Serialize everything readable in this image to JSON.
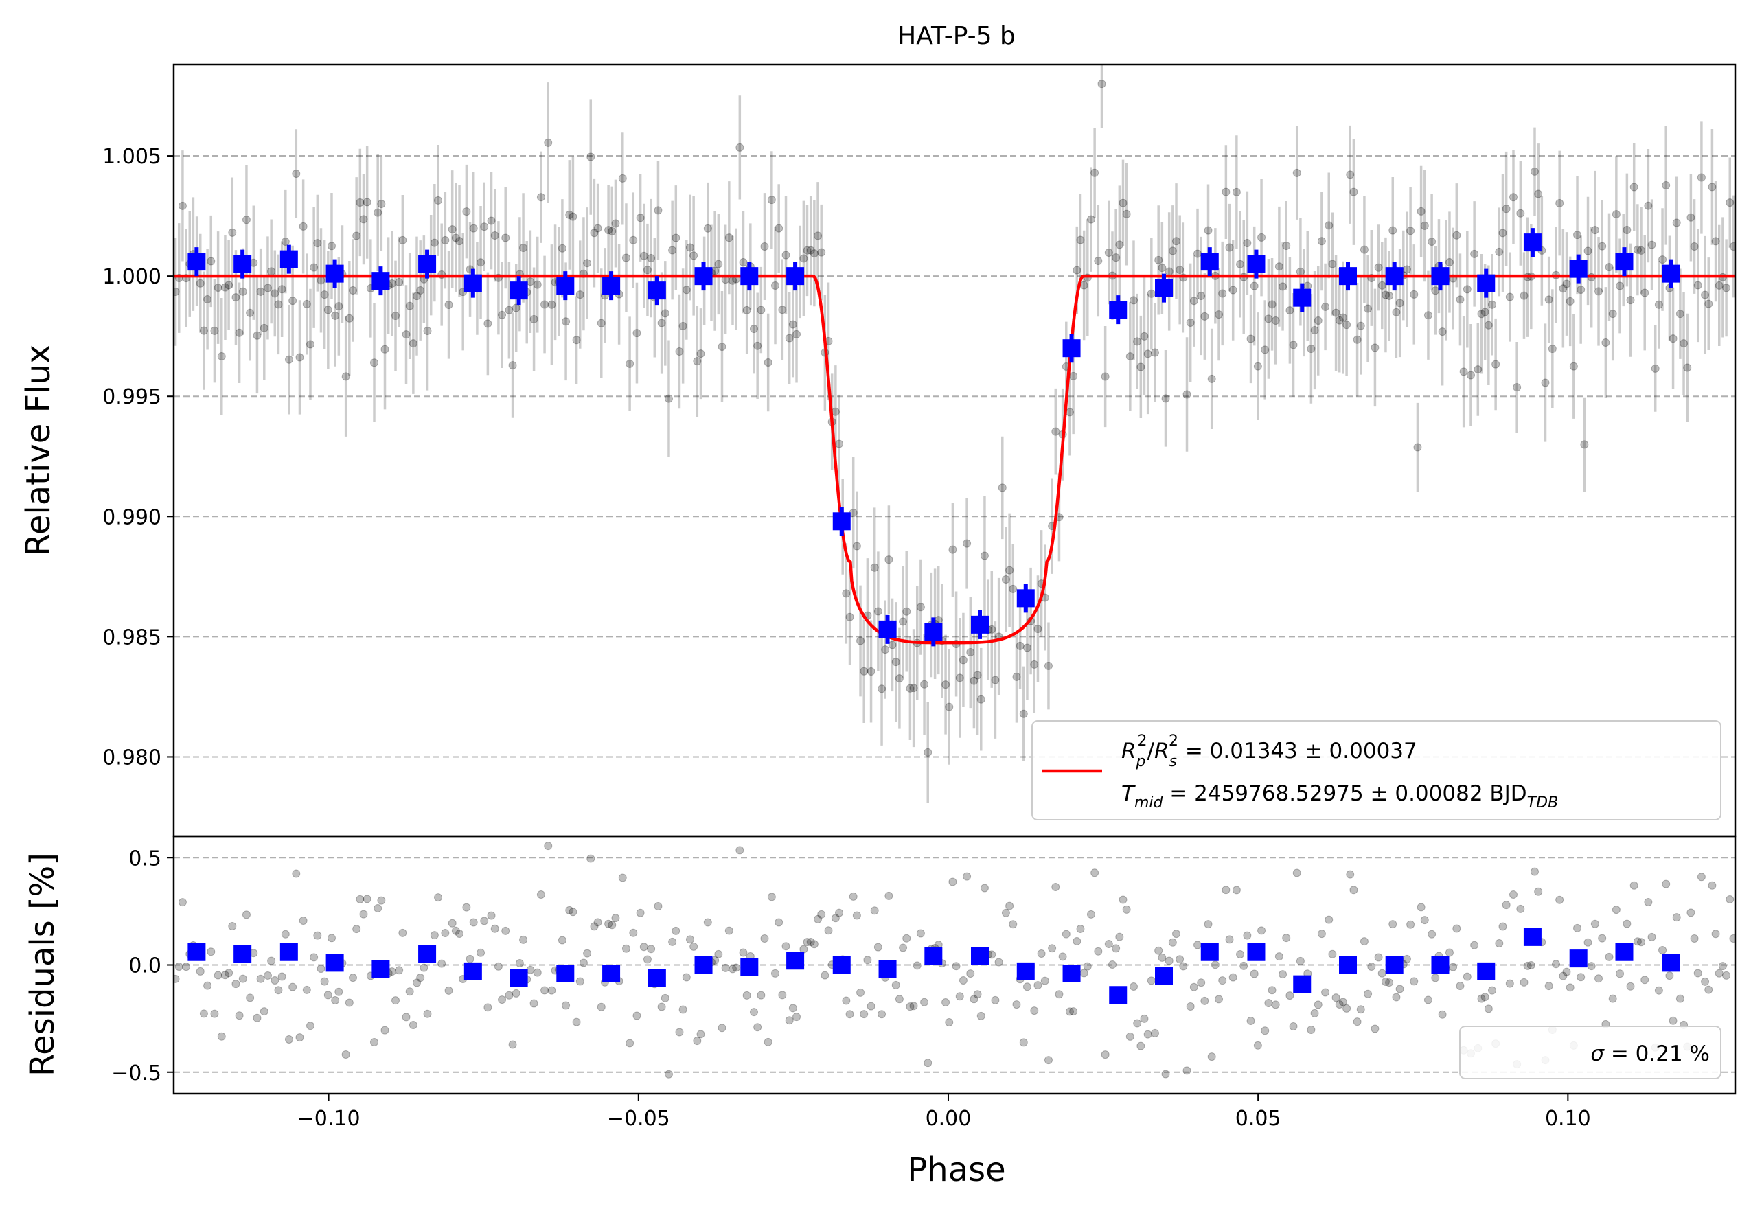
{
  "chart_data": [
    {
      "type": "scatter",
      "panel": "light-curve",
      "title": "HAT-P-5 b",
      "xlabel": "",
      "ylabel": "Relative Flux",
      "xlim": [
        -0.125,
        0.127
      ],
      "ylim": [
        0.9767,
        1.0088
      ],
      "grid": "horizontal dashed",
      "y_ticks": [
        0.98,
        0.985,
        0.99,
        0.995,
        1.0,
        1.005
      ],
      "y_tick_labels": [
        "0.980",
        "0.985",
        "0.990",
        "0.995",
        "1.000",
        "1.005"
      ],
      "transit_model": {
        "color": "#ff0000",
        "baseline": 1.0,
        "depth_min": 0.98475,
        "t1": -0.0218,
        "t2": -0.0158,
        "t3": 0.0158,
        "t4": 0.0218
      },
      "legend": {
        "placement": "lower-right",
        "entries": [
          {
            "label": "R_p^2/R_s^2 = 0.01343 ± 0.00037",
            "color": "#ff0000"
          },
          {
            "label": "T_mid = 2459768.52975 ± 0.00082 BJD_TDB"
          }
        ]
      },
      "legend_text": {
        "line1_r": "R",
        "line1_sub1": "p",
        "line1_sup1": "2",
        "line1_slash": "/",
        "line1_r2": "R",
        "line1_sub2": "s",
        "line1_sup2": "2",
        "line1_value": " = 0.01343 ± 0.00037",
        "line2_t": "T",
        "line2_sub": "mid",
        "line2_value": " = 2459768.52975 ± 0.00082 BJD",
        "line2_unit_sub": "TDB"
      },
      "binned": {
        "color": "#0000ff",
        "x": [
          -0.1213,
          -0.1139,
          -0.1064,
          -0.099,
          -0.0916,
          -0.0841,
          -0.0767,
          -0.0693,
          -0.0618,
          -0.0544,
          -0.047,
          -0.0395,
          -0.0321,
          -0.0247,
          -0.0172,
          -0.0098,
          -0.0024,
          0.0051,
          0.0125,
          0.0199,
          0.0274,
          0.0348,
          0.0422,
          0.0497,
          0.0571,
          0.0645,
          0.072,
          0.0794,
          0.0868,
          0.0943,
          0.1017,
          0.1091,
          0.1166
        ],
        "y": [
          1.0006,
          1.0005,
          1.0007,
          1.0001,
          0.9998,
          1.0005,
          0.9997,
          0.9994,
          0.9996,
          0.9996,
          0.9994,
          1.0,
          1.0,
          1.0,
          0.9898,
          0.9853,
          0.9852,
          0.9855,
          0.9866,
          0.997,
          0.9986,
          0.9995,
          1.0006,
          1.0005,
          0.9991,
          1.0,
          1.0,
          1.0,
          0.9997,
          1.0014,
          1.0003,
          1.0006,
          1.0001
        ]
      },
      "raw_points": {
        "color": "#000000",
        "count": 440,
        "typical_error": 0.0021
      }
    },
    {
      "type": "scatter",
      "panel": "residuals",
      "xlabel": "Phase",
      "ylabel": "Residuals [%]",
      "xlim": [
        -0.125,
        0.127
      ],
      "ylim": [
        -0.6,
        0.6
      ],
      "grid": "horizontal dashed",
      "y_ticks": [
        -0.5,
        0.0,
        0.5
      ],
      "y_tick_labels": [
        "−0.5",
        "0.0",
        "0.5"
      ],
      "x_ticks": [
        -0.1,
        -0.05,
        0.0,
        0.05,
        0.1
      ],
      "x_tick_labels": [
        "−0.10",
        "−0.05",
        "0.00",
        "0.05",
        "0.10"
      ],
      "legend": {
        "placement": "lower-right",
        "entries": [
          {
            "label": "σ = 0.21 %"
          }
        ]
      },
      "legend_text": {
        "sigma": "σ",
        "value": " = 0.21 %"
      },
      "binned": {
        "color": "#0000ff",
        "y": [
          0.06,
          0.05,
          0.06,
          0.01,
          -0.02,
          0.05,
          -0.03,
          -0.06,
          -0.04,
          -0.04,
          -0.06,
          0.0,
          -0.01,
          0.02,
          0.0,
          -0.02,
          0.04,
          0.04,
          -0.03,
          -0.04,
          -0.14,
          -0.05,
          0.06,
          0.06,
          -0.09,
          0.0,
          0.0,
          0.0,
          -0.03,
          0.13,
          0.03,
          0.06,
          0.01
        ]
      }
    }
  ]
}
